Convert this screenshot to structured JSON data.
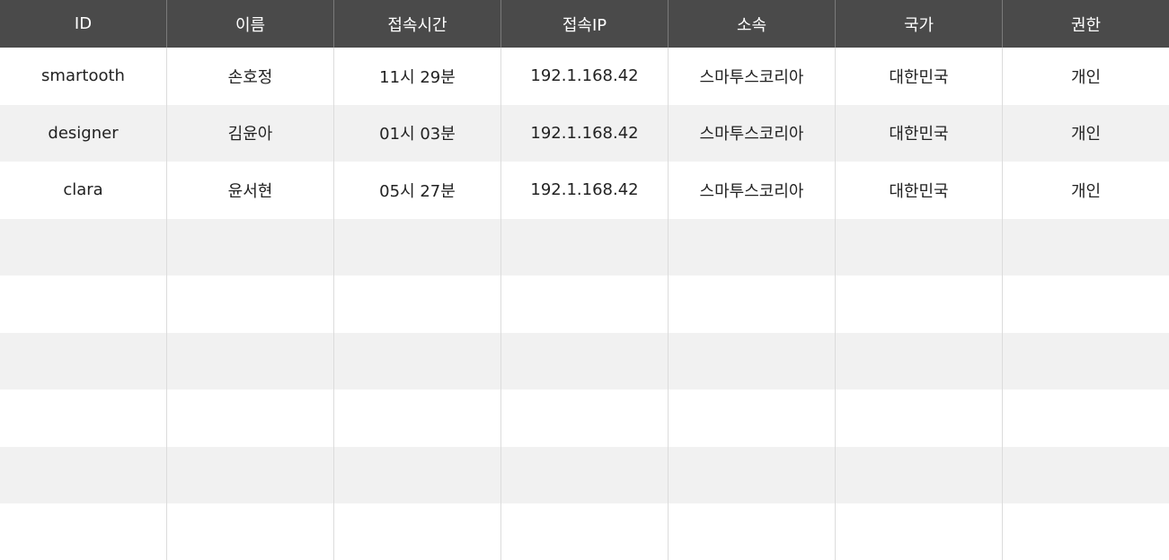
{
  "table": {
    "columns": [
      "ID",
      "이름",
      "접속시간",
      "접속IP",
      "소속",
      "국가",
      "권한"
    ],
    "rows": [
      [
        "smartooth",
        "손호정",
        "11시 29분",
        "192.1.168.42",
        "스마투스코리아",
        "대한민국",
        "개인"
      ],
      [
        "designer",
        "김윤아",
        "01시 03분",
        "192.1.168.42",
        "스마투스코리아",
        "대한민국",
        "개인"
      ],
      [
        "clara",
        "윤서현",
        "05시 27분",
        "192.1.168.42",
        "스마투스코리아",
        "대한민국",
        "개인"
      ],
      [
        "",
        "",
        "",
        "",
        "",
        "",
        ""
      ],
      [
        "",
        "",
        "",
        "",
        "",
        "",
        ""
      ],
      [
        "",
        "",
        "",
        "",
        "",
        "",
        ""
      ],
      [
        "",
        "",
        "",
        "",
        "",
        "",
        ""
      ],
      [
        "",
        "",
        "",
        "",
        "",
        "",
        ""
      ],
      [
        "",
        "",
        "",
        "",
        "",
        "",
        ""
      ]
    ]
  },
  "colors": {
    "header_bg": "#4a4a4a",
    "row_alt_bg": "#f1f1f1",
    "row_bg": "#ffffff"
  }
}
